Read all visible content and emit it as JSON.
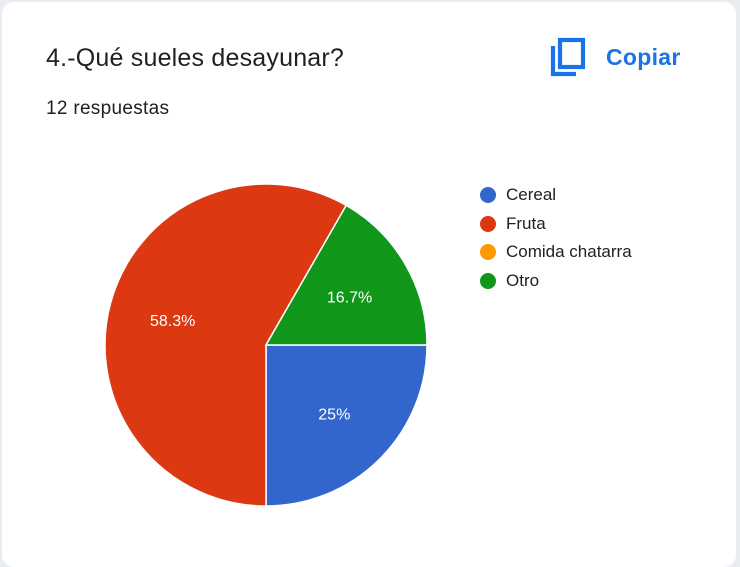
{
  "card": {
    "title": "4.-Qué sueles desayunar?",
    "response_count": "12 respuestas",
    "copy_label": "Copiar",
    "copy_icon": "copy-icon",
    "accent_color": "#1a73e8"
  },
  "chart_data": {
    "type": "pie",
    "title": "4.-Qué sueles desayunar?",
    "legend_position": "right",
    "categories": [
      "Cereal",
      "Fruta",
      "Comida chatarra",
      "Otro"
    ],
    "values": [
      25,
      58.3,
      0,
      16.7
    ],
    "value_labels": [
      "25%",
      "58.3%",
      "",
      "16.7%"
    ],
    "colors": [
      "#3366cc",
      "#dc3912",
      "#ff9900",
      "#109618"
    ]
  }
}
